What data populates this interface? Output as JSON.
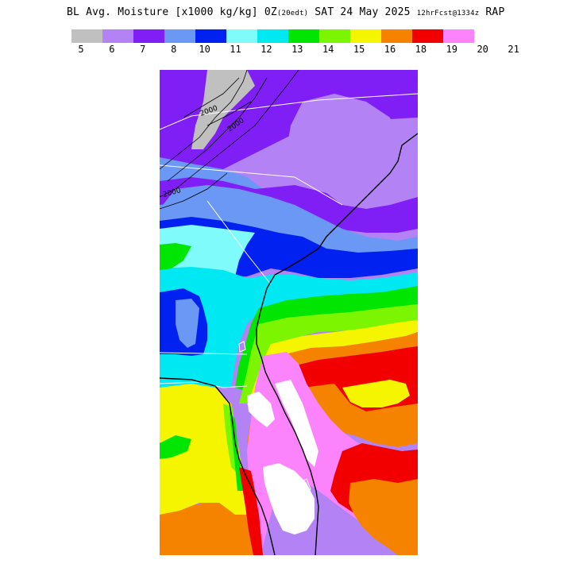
{
  "header": {
    "title_main": "BL Avg. Moisture [x1000 kg/kg] 0Z",
    "title_edt": "(20edt)",
    "title_date": " SAT 24 May 2025 ",
    "title_fcst": "12hrFcst@1334z",
    "title_model": " RAP"
  },
  "legend": {
    "colors": [
      "#c0c0c0",
      "#b383f5",
      "#7f1ff5",
      "#6b97f5",
      "#0021f0",
      "#7ffbfb",
      "#00e9f3",
      "#00e600",
      "#7cf500",
      "#f5f500",
      "#f58300",
      "#f20000",
      "#fb83fb"
    ],
    "labels": [
      "5",
      "6",
      "7",
      "8",
      "10",
      "11",
      "12",
      "13",
      "14",
      "15",
      "16",
      "18",
      "19",
      "20",
      "21"
    ]
  },
  "map": {
    "contour_label": "2000",
    "palette": {
      "grey": "#c0c0c0",
      "lav": "#b383f5",
      "purp": "#7f1ff5",
      "lblue": "#6b97f5",
      "blue": "#0021f0",
      "lcyan": "#7ffbfb",
      "cyan": "#00e9f3",
      "green": "#00e600",
      "lgreen": "#7cf500",
      "yellow": "#f5f500",
      "orange": "#f58300",
      "red": "#f20000",
      "pink": "#fb83fb",
      "white": "#ffffff"
    }
  }
}
